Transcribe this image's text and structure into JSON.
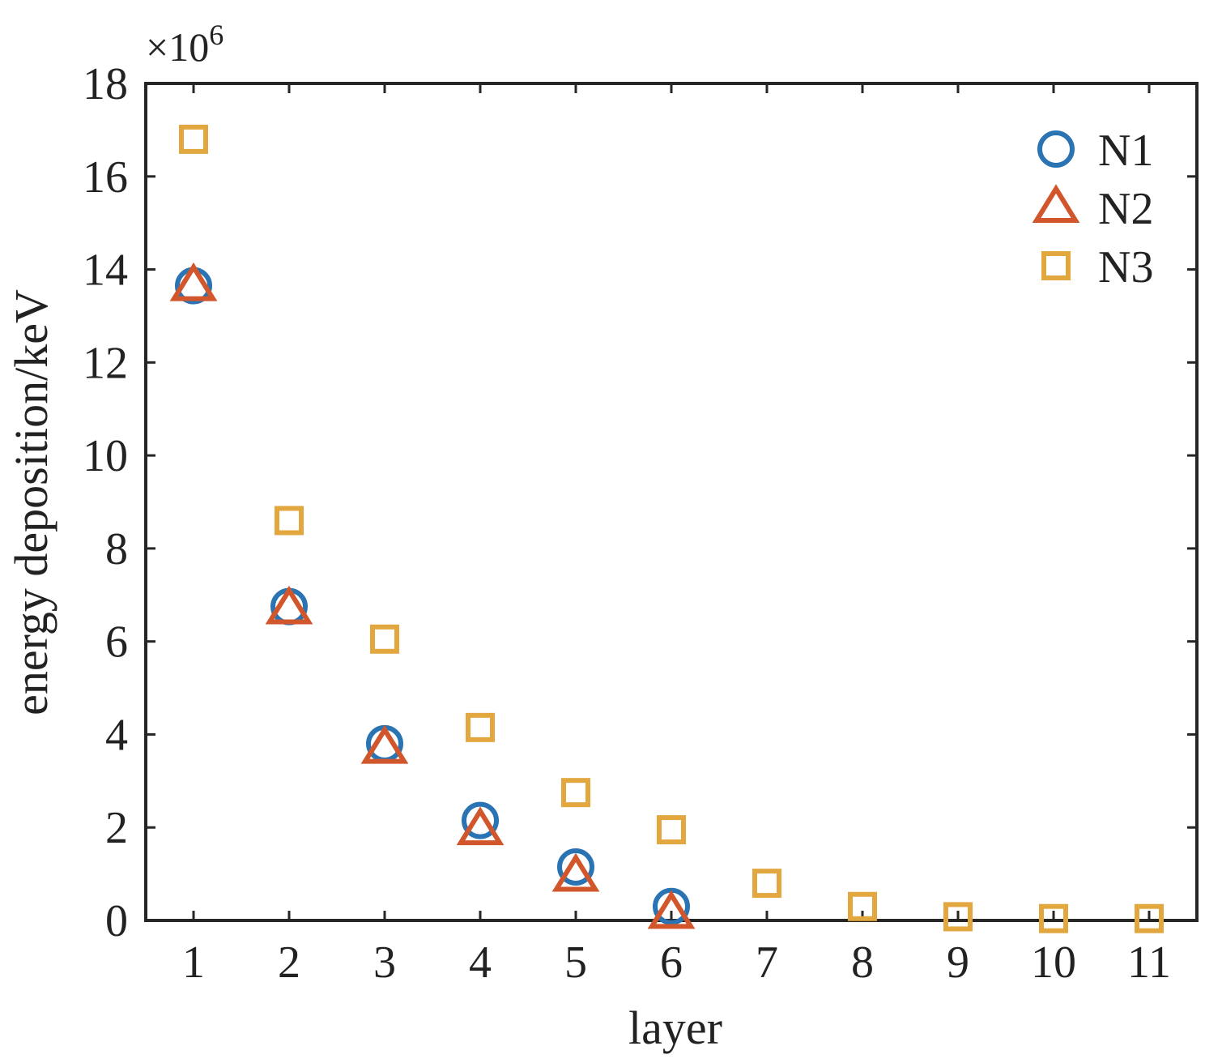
{
  "chart_data": {
    "type": "scatter",
    "xlabel": "layer",
    "ylabel": "energy deposition/keV",
    "y_exponent_label": "×10",
    "y_exponent_power": "6",
    "xlim": [
      0.5,
      11.5
    ],
    "ylim": [
      0,
      18
    ],
    "x_ticks": [
      "1",
      "2",
      "3",
      "4",
      "5",
      "6",
      "7",
      "8",
      "9",
      "10",
      "11"
    ],
    "y_ticks": [
      "0",
      "2",
      "4",
      "6",
      "8",
      "10",
      "12",
      "14",
      "16",
      "18"
    ],
    "grid": false,
    "legend_position": "top-right",
    "series": [
      {
        "name": "N1",
        "marker": "circle",
        "color": "#2a74b4",
        "x": [
          1,
          2,
          3,
          4,
          5,
          6
        ],
        "values": [
          13.65,
          6.75,
          3.8,
          2.15,
          1.15,
          0.3
        ]
      },
      {
        "name": "N2",
        "marker": "triangle",
        "color": "#d2562c",
        "x": [
          1,
          2,
          3,
          4,
          5,
          6
        ],
        "values": [
          13.65,
          6.7,
          3.7,
          1.95,
          0.95,
          0.15
        ]
      },
      {
        "name": "N3",
        "marker": "square",
        "color": "#e3a73f",
        "x": [
          1,
          2,
          3,
          4,
          5,
          6,
          7,
          8,
          9,
          10,
          11
        ],
        "values": [
          16.8,
          8.6,
          6.05,
          4.15,
          2.75,
          1.95,
          0.8,
          0.3,
          0.08,
          0.04,
          0.04
        ]
      }
    ]
  }
}
